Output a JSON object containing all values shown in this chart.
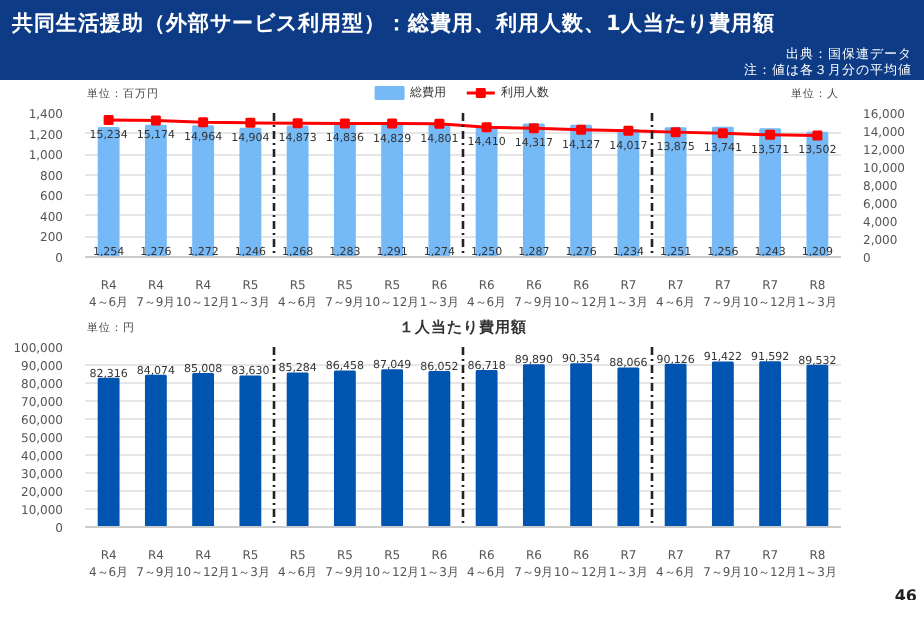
{
  "chart_data": [
    {
      "type": "bar",
      "title": "共同生活援助（外部サービス利用型）：総費用、利用人数、1人当たり費用額",
      "annotations": [
        "出典：国保連データ",
        "注：値は各３月分の平均値"
      ],
      "ylabel": "単位：百万円",
      "y2label": "単位：人",
      "categories": [
        "R4\n4～6月",
        "R4\n7～9月",
        "R4\n10～12月",
        "R5\n1～3月",
        "R5\n4～6月",
        "R5\n7～9月",
        "R5\n10～12月",
        "R6\n1～3月",
        "R6\n4～6月",
        "R6\n7～9月",
        "R6\n10～12月",
        "R7\n1～3月",
        "R7\n4～6月",
        "R7\n7～9月",
        "R7\n10～12月",
        "R8\n1～3月"
      ],
      "series": [
        {
          "name": "総費用",
          "type": "bar",
          "color": "#75b9f7",
          "values": [
            1254,
            1276,
            1272,
            1246,
            1268,
            1283,
            1291,
            1274,
            1250,
            1287,
            1276,
            1234,
            1251,
            1256,
            1243,
            1209
          ],
          "value_labels": [
            "1,254",
            "1,276",
            "1,272",
            "1,246",
            "1,268",
            "1,283",
            "1,291",
            "1,274",
            "1,250",
            "1,287",
            "1,276",
            "1,234",
            "1,251",
            "1,256",
            "1,243",
            "1,209"
          ]
        },
        {
          "name": "利用人数",
          "type": "line",
          "axis": "y2",
          "color": "#ff0000",
          "values": [
            15234,
            15174,
            14964,
            14904,
            14873,
            14836,
            14829,
            14801,
            14410,
            14317,
            14127,
            14017,
            13875,
            13741,
            13571,
            13502
          ],
          "value_labels": [
            "15,234",
            "15,174",
            "14,964",
            "14,904",
            "14,873",
            "14,836",
            "14,829",
            "14,801",
            "14,410",
            "14,317",
            "14,127",
            "14,017",
            "13,875",
            "13,741",
            "13,571",
            "13,502"
          ]
        }
      ],
      "ylim": [
        0,
        1400
      ],
      "yticks": [
        0,
        200,
        400,
        600,
        800,
        {
          "value": 1000,
          "label": "1,000"
        },
        {
          "value": 1200,
          "label": "1,200"
        },
        {
          "value": 1400,
          "label": "1,400"
        }
      ],
      "y2lim": [
        0,
        16000
      ],
      "y2ticks": [
        0,
        {
          "value": 2000,
          "label": "2,000"
        },
        {
          "value": 4000,
          "label": "4,000"
        },
        {
          "value": 6000,
          "label": "6,000"
        },
        {
          "value": 8000,
          "label": "8,000"
        },
        {
          "value": 10000,
          "label": "10,000"
        },
        {
          "value": 12000,
          "label": "12,000"
        },
        {
          "value": 14000,
          "label": "14,000"
        },
        {
          "value": 16000,
          "label": "16,000"
        }
      ],
      "grid": "y",
      "legend": "top",
      "marker": "square"
    },
    {
      "type": "bar",
      "title": "１人当たり費用額",
      "ylabel": "単位：円",
      "annotations": [
        "46"
      ],
      "categories": [
        "R4\n4～6月",
        "R4\n7～9月",
        "R4\n10～12月",
        "R5\n1～3月",
        "R5\n4～6月",
        "R5\n7～9月",
        "R5\n10～12月",
        "R6\n1～3月",
        "R6\n4～6月",
        "R6\n7～9月",
        "R6\n10～12月",
        "R7\n1～3月",
        "R7\n4～6月",
        "R7\n7～9月",
        "R7\n10～12月",
        "R8\n1～3月"
      ],
      "series": [
        {
          "color": "#0055b0",
          "values": [
            82316,
            84074,
            85008,
            83630,
            85284,
            86458,
            87049,
            86052,
            86718,
            89890,
            90354,
            88066,
            90126,
            91422,
            91592,
            89532
          ],
          "value_labels": [
            "82,316",
            "84,074",
            "85,008",
            "83,630",
            "85,284",
            "86,458",
            "87,049",
            "86,052",
            "86,718",
            "89,890",
            "90,354",
            "88,066",
            "90,126",
            "91,422",
            "91,592",
            "89,532"
          ]
        }
      ],
      "ylim": [
        0,
        100000
      ],
      "yticks": [
        0,
        {
          "value": 10000,
          "label": "10,000"
        },
        {
          "value": 20000,
          "label": "20,000"
        },
        {
          "value": 30000,
          "label": "30,000"
        },
        {
          "value": 40000,
          "label": "40,000"
        },
        {
          "value": 50000,
          "label": "50,000"
        },
        {
          "value": 60000,
          "label": "60,000"
        },
        {
          "value": 70000,
          "label": "70,000"
        },
        {
          "value": 80000,
          "label": "80,000"
        },
        {
          "value": 90000,
          "label": "90,000"
        },
        {
          "value": 100000,
          "label": "100,000"
        }
      ],
      "grid": "y"
    }
  ]
}
